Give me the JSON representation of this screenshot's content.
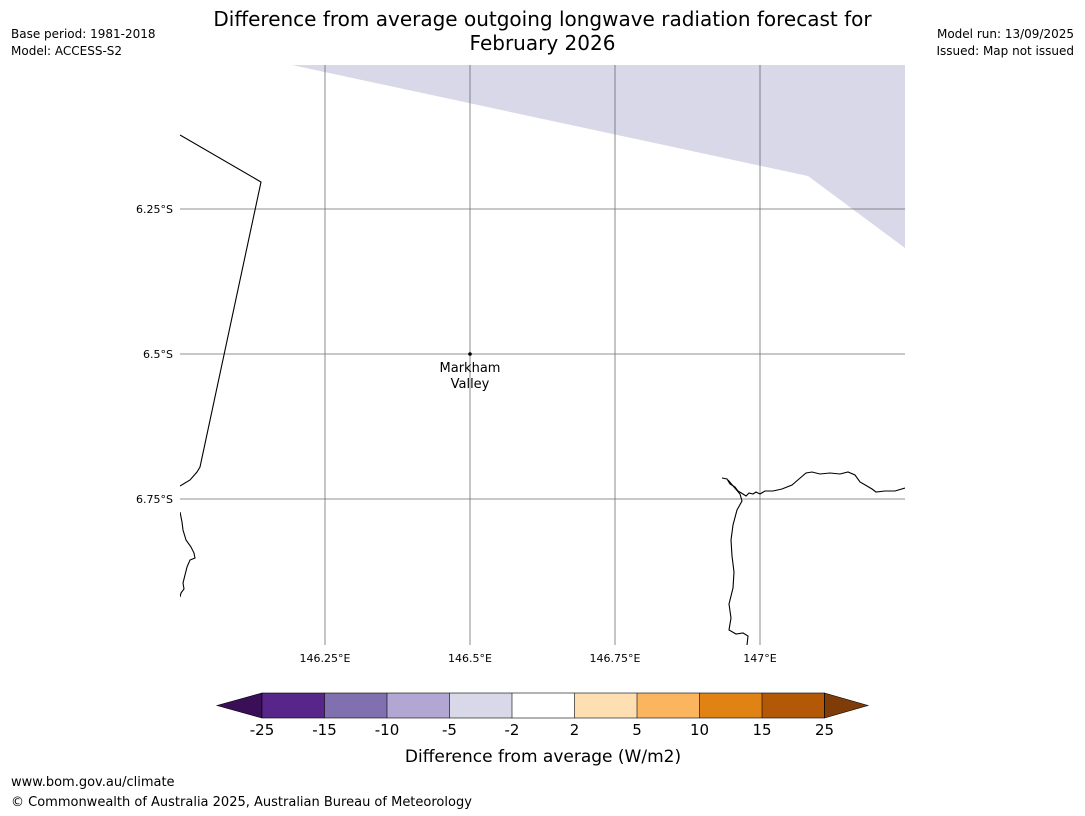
{
  "header": {
    "title_line1": "Difference from average outgoing longwave radiation forecast for",
    "title_line2": "February 2026",
    "base_period": "Base period: 1981-2018",
    "model": "Model: ACCESS-S2",
    "model_run": "Model run: 13/09/2025",
    "issued": "Issued: Map not issued"
  },
  "map": {
    "lat_labels": [
      "6.25°S",
      "6.5°S",
      "6.75°S"
    ],
    "lon_labels": [
      "146.25°E",
      "146.5°E",
      "146.75°E",
      "147°E"
    ],
    "place": {
      "name_line1": "Markham",
      "name_line2": "Valley",
      "lat": -6.5,
      "lon": 146.5
    },
    "shaded_category": "-5 to -2",
    "shaded_color": "#d8d8e8"
  },
  "colorbar": {
    "ticks": [
      "-25",
      "-15",
      "-10",
      "-5",
      "-2",
      "2",
      "5",
      "10",
      "15",
      "25"
    ],
    "colors": [
      "#3b0f57",
      "#58258a",
      "#8070b0",
      "#b1a7d2",
      "#d8d8e8",
      "#ffffff",
      "#fddfb1",
      "#fbb55e",
      "#e08214",
      "#b35806",
      "#7f3b08"
    ],
    "label": "Difference from average (W/m2)"
  },
  "footer": {
    "url": "www.bom.gov.au/climate",
    "copyright": "© Commonwealth of Australia 2025, Australian Bureau of Meteorology"
  }
}
